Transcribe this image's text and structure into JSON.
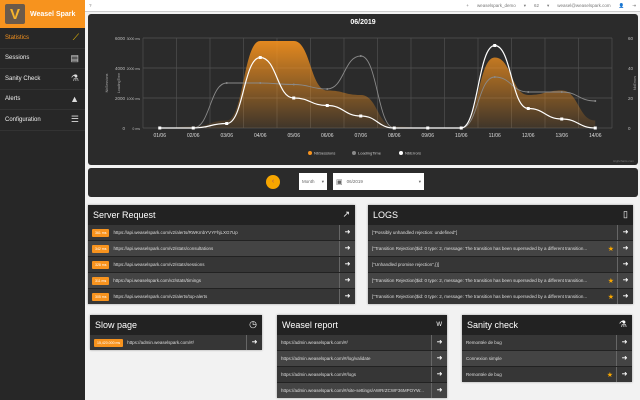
{
  "brand": {
    "name": "Weasel Spark"
  },
  "sidebar": {
    "items": [
      {
        "label": "Statistics",
        "icon": "chart-line-icon",
        "glyph": "⟋"
      },
      {
        "label": "Sessions",
        "icon": "sessions-icon",
        "glyph": "▤"
      },
      {
        "label": "Sanity Check",
        "icon": "flask-icon",
        "glyph": "⚗"
      },
      {
        "label": "Alerts",
        "icon": "warning-icon",
        "glyph": "▲"
      },
      {
        "label": "Configuration",
        "icon": "sliders-icon",
        "glyph": "☰"
      }
    ]
  },
  "topbar": {
    "help": "?",
    "add": "+",
    "project": "weaselspark_demo",
    "env": "62",
    "user": "weasel@weaselspark.com"
  },
  "chart_data": {
    "type": "line",
    "title": "06/2019",
    "categories": [
      "01/06",
      "02/06",
      "03/06",
      "04/06",
      "05/06",
      "06/06",
      "07/06",
      "08/06",
      "09/06",
      "10/06",
      "11/06",
      "12/06",
      "13/06",
      "14/06"
    ],
    "y_axes": [
      {
        "label": "NbSessions",
        "range": [
          0,
          6000
        ],
        "ticks": [
          "0",
          "2000",
          "4000",
          "6000"
        ]
      },
      {
        "label": "LoadingTime",
        "range": [
          0,
          3000
        ],
        "ticks": [
          "0 ms",
          "1000 ms",
          "2000 ms",
          "3000 ms"
        ]
      },
      {
        "label": "NbErrors",
        "range": [
          0,
          60
        ],
        "ticks": [
          "0",
          "20",
          "40",
          "60"
        ]
      }
    ],
    "series": [
      {
        "name": "NbSessions",
        "type": "area",
        "color": "#f7931e",
        "values": [
          0,
          100,
          500,
          5800,
          5800,
          2500,
          2200,
          100,
          0,
          0,
          4700,
          2200,
          2500,
          500
        ]
      },
      {
        "name": "LoadingTime",
        "type": "line",
        "color": "#8a8a8a",
        "values": [
          0,
          0,
          1500,
          1500,
          1450,
          1300,
          2400,
          0,
          0,
          0,
          1700,
          1200,
          1200,
          900
        ]
      },
      {
        "name": "NbErrors",
        "type": "line",
        "color": "#ffffff",
        "values": [
          0,
          0,
          3,
          47,
          20,
          15,
          8,
          0,
          0,
          0,
          55,
          13,
          6,
          0
        ]
      }
    ],
    "legend": "bottom",
    "grid": true,
    "credit": "Highcharts.com"
  },
  "controls": {
    "period": "Month",
    "date": "06/2019"
  },
  "server_request": {
    "title": "Server Request",
    "rows": [
      {
        "badge": "361 ms",
        "url": "https://api.weaselspark.com/v2/alerts/RWKmbYVYFhjLXG7Up"
      },
      {
        "badge": "342 ms",
        "url": "https://api.weaselspark.com/v2/stats/consultations"
      },
      {
        "badge": "328 ms",
        "url": "https://api.weaselspark.com/v2/stats/sessions"
      },
      {
        "badge": "311 ms",
        "url": "https://api.weaselspark.com/v2/stats/timings"
      },
      {
        "badge": "305 ms",
        "url": "https://api.weaselspark.com/v2/alerts/top-alerts"
      }
    ]
  },
  "logs": {
    "title": "LOGS",
    "rows": [
      {
        "text": "[\"Possibly unhandled rejection: undefined\"]",
        "star": false
      },
      {
        "text": "[\"Transition Rejection($id: 0 type: 2, message: The transition has been superseded by a different transition...",
        "star": true
      },
      {
        "text": "[\"Unhandled promise rejection\",{}]",
        "star": false
      },
      {
        "text": "[\"Transition Rejection($id: 0 type: 2, message: The transition has been superseded by a different transition...",
        "star": true
      },
      {
        "text": "[\"Transition Rejection($id: 0 type: 2, message: The transition has been superseded by a different transition...",
        "star": true
      }
    ]
  },
  "slow_page": {
    "title": "Slow page",
    "rows": [
      {
        "badge": "15,420.000 ms",
        "url": "https://admin.weaselspark.com/#/"
      }
    ]
  },
  "weasel_report": {
    "title": "Weasel report",
    "icon_text": "W",
    "rows": [
      {
        "url": "https://admin.weaselspark.com/#/"
      },
      {
        "url": "https://admin.weaselspark.com/#/log/validate"
      },
      {
        "url": "https://admin.weaselspark.com/#/logs"
      },
      {
        "url": "https://admin.weaselspark.com/#/site-settings/AWRrZCWF36MPOYW..."
      }
    ]
  },
  "sanity_check": {
    "title": "Sanity check",
    "rows": [
      {
        "text": "Remontée de bug",
        "star": false
      },
      {
        "text": "Connexion simple",
        "star": false
      },
      {
        "text": "Remontée de bug",
        "star": true
      }
    ]
  }
}
